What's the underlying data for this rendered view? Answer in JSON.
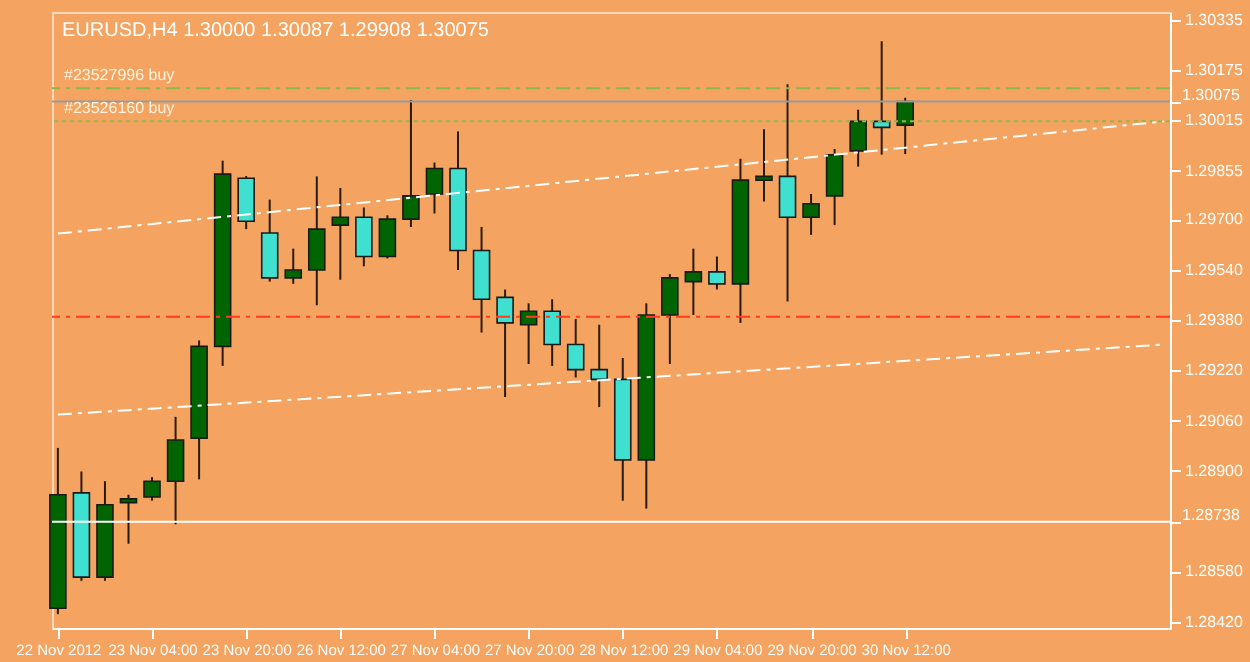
{
  "chart_data": {
    "type": "candlestick",
    "title": "EURUSD,H4  1.30000 1.30087 1.29908 1.30075",
    "categories": [
      "22 Nov 2012",
      null,
      null,
      null,
      "23 Nov 04:00",
      null,
      null,
      null,
      "23 Nov 20:00",
      null,
      null,
      null,
      "26 Nov 12:00",
      null,
      null,
      null,
      "27 Nov 04:00",
      null,
      null,
      null,
      "27 Nov 20:00",
      null,
      null,
      null,
      "28 Nov 12:00",
      null,
      null,
      null,
      "29 Nov 04:00",
      null,
      null,
      null,
      "29 Nov 20:00",
      null,
      null,
      null,
      "30 Nov 12:00",
      null,
      null,
      null,
      null,
      null,
      null,
      null,
      null,
      null,
      null,
      null
    ],
    "ohlc": [
      [
        1.28463,
        1.28973,
        1.28444,
        1.28824
      ],
      [
        1.2883,
        1.28898,
        1.2855,
        1.28562
      ],
      [
        1.28562,
        1.28867,
        1.2855,
        1.28792
      ],
      [
        1.28799,
        1.28824,
        1.28668,
        1.28811
      ],
      [
        1.28817,
        1.2888,
        1.28805,
        1.28867
      ],
      [
        1.28867,
        1.29072,
        1.2873,
        1.28998
      ],
      [
        1.29004,
        1.29315,
        1.28873,
        1.29296
      ],
      [
        1.29296,
        1.29887,
        1.29234,
        1.29844
      ],
      [
        1.29831,
        1.29838,
        1.29669,
        1.29694
      ],
      [
        1.29657,
        1.29763,
        1.29502,
        1.29514
      ],
      [
        1.29514,
        1.29607,
        1.29495,
        1.29539
      ],
      [
        1.29539,
        1.29837,
        1.29427,
        1.29669
      ],
      [
        1.29682,
        1.298,
        1.29508,
        1.29707
      ],
      [
        1.29707,
        1.29738,
        1.29551,
        1.29582
      ],
      [
        1.29582,
        1.29713,
        1.29576,
        1.29701
      ],
      [
        1.29701,
        1.3008,
        1.29676,
        1.29775
      ],
      [
        1.29781,
        1.29881,
        1.29719,
        1.29862
      ],
      [
        1.29862,
        1.2998,
        1.29539,
        1.29601
      ],
      [
        1.29601,
        1.29676,
        1.2934,
        1.29446
      ],
      [
        1.29452,
        1.29477,
        1.29135,
        1.29371
      ],
      [
        1.29365,
        1.29433,
        1.2924,
        1.29408
      ],
      [
        1.29408,
        1.29446,
        1.29234,
        1.29302
      ],
      [
        1.29302,
        1.29383,
        1.29197,
        1.29222
      ],
      [
        1.29222,
        1.29365,
        1.29103,
        1.29191
      ],
      [
        1.29191,
        1.29259,
        1.28805,
        1.28935
      ],
      [
        1.28935,
        1.29433,
        1.2878,
        1.29396
      ],
      [
        1.29396,
        1.29526,
        1.2924,
        1.29514
      ],
      [
        1.29502,
        1.29607,
        1.29396,
        1.29533
      ],
      [
        1.29533,
        1.29582,
        1.29477,
        1.29495
      ],
      [
        1.29495,
        1.29893,
        1.29371,
        1.29825
      ],
      [
        1.29825,
        1.29987,
        1.29757,
        1.29837
      ],
      [
        1.29837,
        1.3013,
        1.29439,
        1.29707
      ],
      [
        1.29707,
        1.29781,
        1.29651,
        1.2975
      ],
      [
        1.29775,
        1.29924,
        1.29682,
        1.29906
      ],
      [
        1.29918,
        1.30049,
        1.29868,
        1.30012
      ],
      [
        1.30012,
        1.30267,
        1.29906,
        1.29993
      ],
      [
        1.3,
        1.30087,
        1.29908,
        1.30075
      ],
      null,
      null,
      null,
      null,
      null,
      null,
      null,
      null,
      null,
      null,
      null
    ],
    "colors": [
      "#006400",
      "#40e0d0",
      "#006400",
      "#006400",
      "#006400",
      "#006400",
      "#006400",
      "#006400",
      "#40e0d0",
      "#40e0d0",
      "#006400",
      "#006400",
      "#006400",
      "#40e0d0",
      "#006400",
      "#006400",
      "#006400",
      "#40e0d0",
      "#40e0d0",
      "#40e0d0",
      "#006400",
      "#40e0d0",
      "#40e0d0",
      "#40e0d0",
      "#40e0d0",
      "#006400",
      "#006400",
      "#006400",
      "#40e0d0",
      "#006400",
      "#006400",
      "#40e0d0",
      "#006400",
      "#006400",
      "#006400",
      "#40e0d0",
      "#006400",
      null,
      null,
      null,
      null,
      null,
      null,
      null,
      null,
      null,
      null,
      null
    ],
    "series": [
      {
        "type": "line",
        "color": "#ffffff",
        "line_style": "dashed",
        "values": [
          1.29655,
          null,
          null,
          null,
          null,
          null,
          null,
          null,
          null,
          null,
          null,
          null,
          null,
          null,
          null,
          null,
          null,
          null,
          null,
          null,
          null,
          null,
          null,
          null,
          null,
          null,
          null,
          null,
          null,
          null,
          null,
          null,
          null,
          null,
          null,
          null,
          null,
          null,
          null,
          null,
          null,
          null,
          null,
          null,
          null,
          null,
          null,
          1.30012
        ]
      },
      {
        "type": "line",
        "color": "#ffffff",
        "line_style": "dashed",
        "values": [
          1.29079,
          null,
          null,
          null,
          null,
          null,
          null,
          null,
          null,
          null,
          null,
          null,
          null,
          null,
          null,
          null,
          null,
          null,
          null,
          null,
          null,
          null,
          null,
          null,
          null,
          null,
          null,
          null,
          null,
          null,
          null,
          null,
          null,
          null,
          null,
          null,
          null,
          null,
          null,
          null,
          null,
          null,
          null,
          null,
          null,
          null,
          null,
          1.29302
        ]
      }
    ],
    "ylim": [
      1.284,
      1.3036
    ],
    "yticks": [
      1.30335,
      1.30175,
      {
        "value": 1.30075,
        "label": null
      },
      1.30015,
      1.29855,
      {
        "value": 1.297,
        "label": "1.29700"
      },
      {
        "value": 1.2954,
        "label": "1.29540"
      },
      {
        "value": 1.2938,
        "label": "1.29380"
      },
      {
        "value": 1.2922,
        "label": "1.29220"
      },
      {
        "value": 1.2906,
        "label": "1.29060"
      },
      {
        "value": 1.289,
        "label": "1.28900"
      },
      {
        "value": 1.28738,
        "label": null
      },
      {
        "value": 1.2858,
        "label": "1.28580"
      },
      {
        "value": 1.2842,
        "label": "1.28420"
      }
    ],
    "ref_lines": [
      {
        "axis": "y",
        "value": 1.30117,
        "label": "#23527996 buy",
        "color": "#8db84a",
        "line_style": "dashed"
      },
      {
        "axis": "y",
        "value": 1.30012,
        "label": "#23526160 buy",
        "color": "#8db84a",
        "line_style": "dotted"
      },
      {
        "axis": "y",
        "value": 1.30075,
        "label": "1.30075",
        "color": "#9a9a9a",
        "line_style": "solid"
      },
      {
        "axis": "y",
        "value": 1.2939,
        "color": "#ff3c1e",
        "line_style": "dashed"
      },
      {
        "axis": "y",
        "value": 1.28738,
        "label": "1.28738",
        "color": "#ffffff",
        "line_style": "solid"
      }
    ],
    "grid": false
  }
}
